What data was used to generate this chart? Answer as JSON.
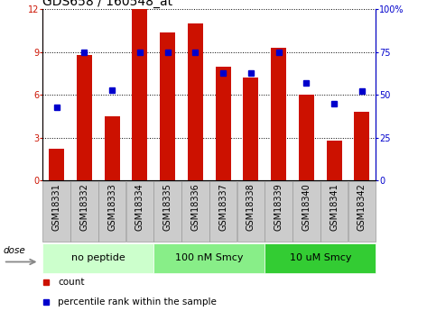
{
  "title": "GDS658 / 160548_at",
  "samples": [
    "GSM18331",
    "GSM18332",
    "GSM18333",
    "GSM18334",
    "GSM18335",
    "GSM18336",
    "GSM18337",
    "GSM18338",
    "GSM18339",
    "GSM18340",
    "GSM18341",
    "GSM18342"
  ],
  "counts": [
    2.2,
    8.8,
    4.5,
    12.0,
    10.4,
    11.0,
    8.0,
    7.2,
    9.3,
    6.0,
    2.8,
    4.8
  ],
  "percentiles": [
    43,
    75,
    53,
    75,
    75,
    75,
    63,
    63,
    75,
    57,
    45,
    52
  ],
  "bar_color": "#cc1100",
  "square_color": "#0000cc",
  "ylim_left": [
    0,
    12
  ],
  "ylim_right": [
    0,
    100
  ],
  "yticks_left": [
    0,
    3,
    6,
    9,
    12
  ],
  "ytick_labels_left": [
    "0",
    "3",
    "6",
    "9",
    "12"
  ],
  "yticks_right": [
    0,
    25,
    50,
    75,
    100
  ],
  "ytick_labels_right": [
    "0",
    "25",
    "50",
    "75",
    "100%"
  ],
  "groups": [
    {
      "label": "no peptide",
      "start": 0,
      "end": 4,
      "color": "#ccffcc"
    },
    {
      "label": "100 nM Smcy",
      "start": 4,
      "end": 8,
      "color": "#88ee88"
    },
    {
      "label": "10 uM Smcy",
      "start": 8,
      "end": 12,
      "color": "#33cc33"
    }
  ],
  "dose_label": "dose",
  "legend_count": "count",
  "legend_pct": "percentile rank within the sample",
  "xlabel_bg": "#cccccc",
  "title_fontsize": 10,
  "tick_fontsize": 7,
  "group_fontsize": 8,
  "legend_fontsize": 7.5
}
